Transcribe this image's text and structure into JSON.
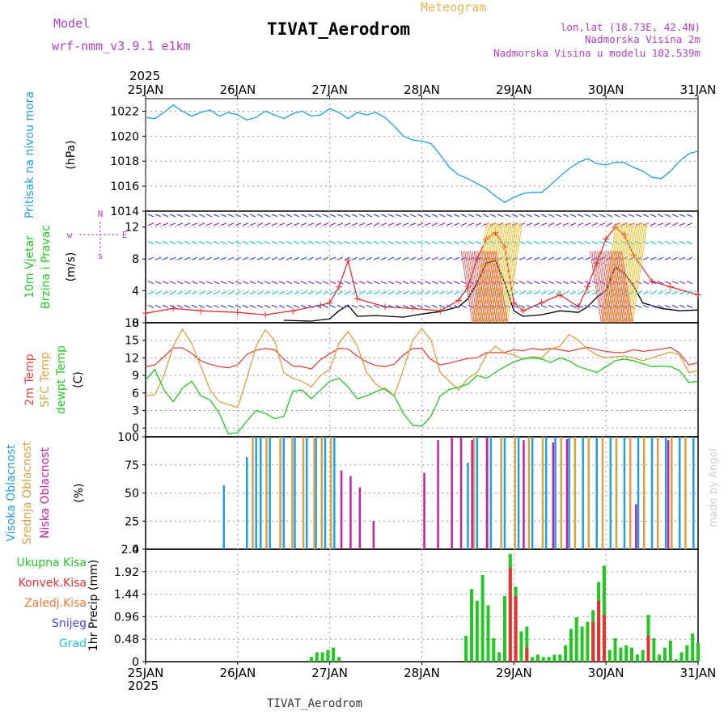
{
  "header": {
    "model_label": "Model",
    "model_name": "wrf-nmm_v3.9.1 e1km",
    "station_title": "TIVAT_Aerodrom",
    "meteogram_label": "Meteogram",
    "lonlat": "lon,lat (18.73E, 42.4N)",
    "elev": "Nadmorska Visina 2m",
    "model_elev": "Nadmorska Visina u modelu 102.539m",
    "year": "2025",
    "footer_title": "TIVAT_Aerodrom",
    "credit": "made by Angel"
  },
  "colors": {
    "pressure": "#1ea0e6",
    "wind_speed": "#000000",
    "gust": "#e83030",
    "t2m": "#e8463c",
    "sfc": "#dca040",
    "dewpt": "#22c822",
    "cl_high": "#1ea0e6",
    "cl_mid": "#dca040",
    "cl_low": "#c81ea0",
    "precip_total": "#22c822",
    "precip_conv": "#e83030",
    "freezing": "#f07830",
    "snow": "#4646dc",
    "hail": "#1ec8c8",
    "purple_text": "#b040c8",
    "orange_text": "#e8b450"
  },
  "chart_data": [
    {
      "type": "line",
      "title": "",
      "ylabel": [
        "Pritisak na nivou mora",
        "(hPa)"
      ],
      "ylim": [
        1014,
        1023
      ],
      "yticks": [
        "1022",
        "1020",
        "1018",
        "1016",
        "1014"
      ],
      "xticks": [
        "25JAN",
        "26JAN",
        "27JAN",
        "28JAN",
        "29JAN",
        "30JAN",
        "31JAN"
      ],
      "grid": true,
      "series": [
        {
          "key": "pressure",
          "x": [
            0,
            0.1,
            0.2,
            0.3,
            0.4,
            0.5,
            0.6,
            0.7,
            0.8,
            0.9,
            1.0,
            1.1,
            1.2,
            1.3,
            1.4,
            1.5,
            1.6,
            1.7,
            1.8,
            1.9,
            2.0,
            2.1,
            2.2,
            2.3,
            2.4,
            2.5,
            2.6,
            2.7,
            2.8,
            2.9,
            3.0,
            3.1,
            3.2,
            3.3,
            3.4,
            3.5,
            3.6,
            3.7,
            3.8,
            3.9,
            4.0,
            4.1,
            4.2,
            4.3,
            4.4,
            4.5,
            4.6,
            4.7,
            4.8,
            4.9,
            5.0,
            5.1,
            5.2,
            5.3,
            5.4,
            5.5,
            5.6,
            5.7,
            5.8,
            5.9,
            6.0
          ],
          "values": [
            1021.5,
            1021.4,
            1021.9,
            1022.5,
            1022,
            1021.6,
            1021.9,
            1022.1,
            1021.6,
            1021.9,
            1021.7,
            1021.3,
            1021.5,
            1022.0,
            1021.7,
            1021.4,
            1021.8,
            1022.0,
            1021.6,
            1021.7,
            1022.2,
            1021.9,
            1021.4,
            1021.9,
            1021.7,
            1021.9,
            1021.5,
            1020.8,
            1020.0,
            1019.7,
            1019.6,
            1019.4,
            1018.5,
            1017.5,
            1016.9,
            1016.6,
            1016.2,
            1015.8,
            1015.2,
            1014.7,
            1015.1,
            1015.4,
            1015.5,
            1015.5,
            1016.1,
            1016.8,
            1017.4,
            1017.9,
            1018.2,
            1017.8,
            1017.7,
            1017.9,
            1017.9,
            1017.5,
            1017.2,
            1016.7,
            1016.6,
            1017.2,
            1018.0,
            1018.6,
            1018.8
          ]
        }
      ]
    },
    {
      "type": "line",
      "title": "",
      "ylabel": [
        "10m Vjetar",
        "Brzina i Pravac",
        "(m/s)"
      ],
      "compass": {
        "n": "N",
        "s": "s",
        "w": "w",
        "e": "E"
      },
      "ylim": [
        0,
        14
      ],
      "yticks": [
        "12",
        "8",
        "4",
        "0"
      ],
      "grid": true,
      "series": [
        {
          "key": "wind_speed",
          "x": [
            1.5,
            1.8,
            2.0,
            2.1,
            2.2,
            2.3,
            2.5,
            2.8,
            3.0,
            3.2,
            3.4,
            3.5,
            3.6,
            3.7,
            3.8,
            3.9,
            4.0,
            4.1,
            4.3,
            4.5,
            4.7,
            4.8,
            4.9,
            5.0,
            5.05,
            5.1,
            5.2,
            5.3,
            5.4,
            5.6,
            5.8,
            6.0
          ],
          "values": [
            0.3,
            0.2,
            0.5,
            1.5,
            2.2,
            0.8,
            0.9,
            0.7,
            1.1,
            1.4,
            2.0,
            3.0,
            5.0,
            7.5,
            7.8,
            5.0,
            1.5,
            0.8,
            1.0,
            1.5,
            1.3,
            2.0,
            3.2,
            4.0,
            5.5,
            7.0,
            6.2,
            4.6,
            2.5,
            1.8,
            1.5,
            1.6
          ]
        },
        {
          "key": "gust",
          "x": [
            0,
            0.3,
            0.6,
            1.0,
            1.3,
            1.6,
            1.9,
            2.0,
            2.1,
            2.2,
            2.3,
            2.6,
            2.9,
            3.2,
            3.4,
            3.5,
            3.6,
            3.7,
            3.8,
            3.9,
            4.0,
            4.1,
            4.3,
            4.5,
            4.7,
            4.8,
            4.9,
            5.0,
            5.1,
            5.2,
            5.3,
            5.5,
            5.7,
            6.0
          ],
          "values": [
            1.2,
            1.8,
            1.5,
            1.3,
            1.0,
            1.5,
            2.2,
            2.5,
            4.5,
            7.8,
            3.0,
            2.0,
            1.8,
            1.5,
            2.8,
            4.5,
            8.0,
            10.5,
            11.3,
            9.5,
            2.5,
            1.5,
            2.5,
            3.5,
            2.0,
            4.5,
            7.5,
            10.5,
            12.0,
            11.0,
            8.5,
            5.2,
            4.5,
            3.5
          ]
        }
      ]
    },
    {
      "type": "line",
      "title": "",
      "ylabel": [
        "2m Temp",
        "SFC Temp",
        "dewpt Temp",
        "(C)"
      ],
      "ylim": [
        -1.5,
        18
      ],
      "yticks": [
        "18",
        "15",
        "12",
        "9",
        "6",
        "3",
        "0"
      ],
      "grid": true,
      "series": [
        {
          "key": "t2m",
          "x": [
            0,
            0.1,
            0.2,
            0.3,
            0.4,
            0.5,
            0.6,
            0.7,
            0.8,
            0.9,
            1.0,
            1.1,
            1.2,
            1.3,
            1.4,
            1.5,
            1.6,
            1.7,
            1.8,
            1.9,
            2.0,
            2.1,
            2.2,
            2.3,
            2.4,
            2.5,
            2.6,
            2.7,
            2.8,
            2.9,
            3.0,
            3.1,
            3.2,
            3.3,
            3.4,
            3.5,
            3.6,
            3.7,
            3.8,
            3.9,
            4.0,
            4.1,
            4.2,
            4.3,
            4.4,
            4.5,
            4.6,
            4.7,
            4.8,
            4.9,
            5.0,
            5.1,
            5.2,
            5.3,
            5.4,
            5.5,
            5.6,
            5.7,
            5.8,
            5.9,
            6.0
          ],
          "values": [
            10.5,
            10.8,
            12.2,
            13.7,
            13.7,
            12.8,
            11.5,
            10.9,
            10.5,
            10.3,
            10.8,
            12.6,
            13.3,
            13.6,
            13.4,
            11.8,
            10.6,
            10.5,
            10.1,
            11.7,
            12.7,
            13.6,
            13.5,
            12.3,
            11.3,
            10.7,
            10.5,
            10.9,
            12.5,
            13.6,
            13.6,
            11.7,
            10.8,
            11.1,
            11.5,
            11.9,
            12.0,
            12.9,
            12.9,
            12.9,
            13.4,
            13.2,
            13.6,
            13.4,
            13.6,
            13.4,
            13.1,
            13.5,
            13.8,
            13.4,
            13.1,
            12.9,
            12.9,
            13.4,
            13.1,
            13.3,
            13.5,
            13.8,
            12.8,
            10.8,
            11.2
          ]
        },
        {
          "key": "sfc",
          "x": [
            0,
            0.1,
            0.2,
            0.3,
            0.4,
            0.5,
            0.6,
            0.7,
            0.8,
            0.9,
            1.0,
            1.1,
            1.2,
            1.3,
            1.4,
            1.5,
            1.6,
            1.7,
            1.8,
            1.9,
            2.0,
            2.1,
            2.2,
            2.3,
            2.4,
            2.5,
            2.6,
            2.7,
            2.8,
            2.9,
            3.0,
            3.1,
            3.2,
            3.3,
            3.4,
            3.5,
            3.6,
            3.7,
            3.8,
            3.9,
            4.0,
            4.1,
            4.2,
            4.3,
            4.4,
            4.5,
            4.6,
            4.7,
            4.8,
            4.9,
            5.0,
            5.1,
            5.2,
            5.3,
            5.4,
            5.5,
            5.6,
            5.7,
            5.8,
            5.9,
            6.0
          ],
          "values": [
            5.5,
            5.7,
            9.0,
            14.0,
            16.9,
            14.5,
            10.5,
            6.5,
            4.5,
            4.0,
            3.5,
            8.5,
            14.0,
            16.8,
            15.0,
            9.5,
            8.5,
            8.0,
            7.0,
            9.0,
            10.0,
            14.5,
            16.5,
            14.0,
            9.5,
            7.5,
            6.5,
            5.5,
            10.0,
            15.0,
            17.0,
            15.0,
            9.5,
            8.0,
            6.5,
            8.5,
            9.5,
            12.5,
            14.0,
            12.8,
            12.5,
            11.8,
            12.2,
            12.0,
            13.5,
            14.0,
            16.0,
            15.0,
            13.5,
            12.5,
            12.0,
            12.2,
            12.3,
            12.0,
            11.5,
            12.0,
            12.5,
            13.0,
            12.5,
            9.5,
            9.8
          ]
        },
        {
          "key": "dewpt",
          "x": [
            0,
            0.1,
            0.2,
            0.3,
            0.4,
            0.5,
            0.6,
            0.7,
            0.8,
            0.9,
            1.0,
            1.1,
            1.2,
            1.3,
            1.4,
            1.5,
            1.6,
            1.7,
            1.8,
            1.9,
            2.0,
            2.1,
            2.2,
            2.3,
            2.4,
            2.5,
            2.6,
            2.7,
            2.8,
            2.9,
            3.0,
            3.1,
            3.2,
            3.3,
            3.4,
            3.5,
            3.6,
            3.7,
            3.8,
            3.9,
            4.0,
            4.1,
            4.2,
            4.3,
            4.4,
            4.5,
            4.6,
            4.7,
            4.8,
            4.9,
            5.0,
            5.1,
            5.2,
            5.3,
            5.4,
            5.5,
            5.6,
            5.7,
            5.8,
            5.9,
            6.0
          ],
          "values": [
            8.2,
            10.0,
            6.5,
            4.5,
            6.8,
            8.0,
            5.5,
            4.8,
            2.5,
            -1.0,
            -0.8,
            1.2,
            3.0,
            2.5,
            1.6,
            2.0,
            6.3,
            6.5,
            5.0,
            6.5,
            8.0,
            8.5,
            7.0,
            5.0,
            5.5,
            6.2,
            6.8,
            5.5,
            2.5,
            0.5,
            0.3,
            2.0,
            5.5,
            6.6,
            7.0,
            7.5,
            9.0,
            8.5,
            9.5,
            10.5,
            11.3,
            11.8,
            12.0,
            11.8,
            11.2,
            12.0,
            11.5,
            10.5,
            10.0,
            9.5,
            10.5,
            11.5,
            11.8,
            11.5,
            11.0,
            10.5,
            10.6,
            10.5,
            9.8,
            7.8,
            8.0
          ]
        }
      ]
    },
    {
      "type": "bar",
      "title": "",
      "ylabel": [
        "Visoka Oblacnost",
        "Srednja Oblacnost",
        "Niska Oblacnost",
        "(%)"
      ],
      "ylim": [
        0,
        100
      ],
      "yticks": [
        "100",
        "75",
        "50",
        "25",
        "0"
      ],
      "grid": true,
      "series": [
        {
          "key": "cl_high",
          "x": [
            0.85,
            1.1,
            1.2,
            1.25,
            1.35,
            1.5,
            1.62,
            1.75,
            1.85,
            1.95,
            2.05,
            3.5,
            3.6,
            3.75,
            3.9,
            4.05,
            4.2,
            4.35,
            4.45,
            4.6,
            4.75,
            4.9,
            5.05,
            5.2,
            5.35,
            5.5,
            5.65,
            5.8,
            5.95
          ],
          "values": [
            57,
            82,
            100,
            100,
            100,
            100,
            100,
            100,
            100,
            100,
            100,
            77,
            100,
            100,
            100,
            100,
            100,
            100,
            100,
            100,
            100,
            100,
            100,
            100,
            100,
            100,
            100,
            100,
            100
          ]
        },
        {
          "key": "cl_mid",
          "x": [
            1.15,
            1.3,
            1.45,
            1.58,
            1.7,
            1.82,
            1.9,
            2.0,
            3.55,
            3.7,
            3.85,
            4.0,
            4.15,
            4.3,
            4.5,
            4.65,
            4.8,
            4.95,
            5.1,
            5.25,
            5.4,
            5.55,
            5.7,
            5.85
          ],
          "values": [
            100,
            100,
            100,
            100,
            100,
            100,
            100,
            100,
            100,
            100,
            100,
            100,
            100,
            100,
            100,
            100,
            100,
            100,
            100,
            100,
            100,
            100,
            100,
            100
          ]
        },
        {
          "key": "cl_low",
          "x": [
            2.1,
            2.2,
            2.3,
            2.45,
            3.0,
            3.15,
            3.3,
            3.4,
            3.52,
            3.68,
            4.08,
            4.4,
            4.55,
            5.3,
            5.65
          ],
          "values": [
            70,
            65,
            55,
            25,
            68,
            97,
            100,
            100,
            97,
            100,
            97,
            95,
            98,
            40,
            97
          ]
        }
      ]
    },
    {
      "type": "bar",
      "title": "",
      "ylabel": [
        "1hr Precip (mm)"
      ],
      "legend": [
        "Ukupna Kisa",
        "Konvek.Kisa",
        "Zaledj.Kisa",
        "Snijeg",
        "Grad"
      ],
      "ylim": [
        0,
        2.4
      ],
      "yticks": [
        "2.4",
        "1.92",
        "1.44",
        "0.96",
        "0.48",
        "0"
      ],
      "xticks": [
        "25JAN",
        "26JAN",
        "27JAN",
        "28JAN",
        "29JAN",
        "30JAN",
        "31JAN"
      ],
      "grid": true,
      "series": [
        {
          "key": "precip_total",
          "x": [
            1.8,
            1.86,
            1.92,
            1.98,
            2.04,
            2.1,
            3.48,
            3.54,
            3.6,
            3.66,
            3.72,
            3.78,
            3.84,
            3.9,
            3.96,
            4.02,
            4.08,
            4.14,
            4.2,
            4.26,
            4.32,
            4.38,
            4.44,
            4.5,
            4.56,
            4.62,
            4.68,
            4.74,
            4.8,
            4.86,
            4.92,
            4.98,
            5.04,
            5.1,
            5.16,
            5.22,
            5.28,
            5.34,
            5.4,
            5.46,
            5.52,
            5.58,
            5.64,
            5.7,
            5.76,
            5.82,
            5.88,
            5.94,
            6.0
          ],
          "values": [
            0.1,
            0.2,
            0.2,
            0.25,
            0.3,
            0.1,
            0.55,
            1.55,
            1.3,
            1.85,
            1.2,
            0.5,
            0.2,
            1.4,
            2.3,
            1.6,
            0.65,
            0.75,
            0.1,
            0.15,
            0.1,
            0.1,
            0.15,
            0.15,
            0.35,
            0.7,
            0.95,
            0.75,
            0.85,
            1.1,
            1.7,
            2.05,
            0.25,
            0.5,
            0.3,
            0.35,
            0.3,
            0.15,
            0.25,
            1.0,
            0.5,
            0.15,
            0.3,
            0.45,
            0.05,
            0.2,
            0.35,
            0.6,
            0.4
          ]
        },
        {
          "key": "precip_conv",
          "x": [
            3.96,
            4.02,
            4.14,
            4.86,
            4.92,
            4.98,
            5.46
          ],
          "values": [
            2.0,
            1.4,
            0.3,
            0.85,
            1.3,
            1.0,
            0.55
          ]
        }
      ]
    }
  ]
}
